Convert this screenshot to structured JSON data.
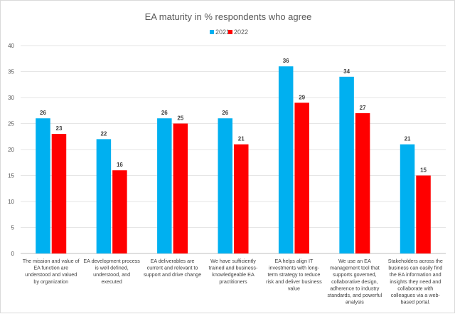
{
  "chart_data": {
    "type": "bar",
    "title": "EA maturity in % respondents who agree",
    "xlabel": "",
    "ylabel": "",
    "ylim": [
      0,
      40
    ],
    "yticks": [
      0,
      5,
      10,
      15,
      20,
      25,
      30,
      35,
      40
    ],
    "grid": true,
    "legend_position": "top-center",
    "categories": [
      [
        "The mission and value of",
        "EA function are",
        "understood and valued",
        "by organization"
      ],
      [
        "EA development process",
        "is well defined,",
        "understood, and",
        "executed"
      ],
      [
        "EA deliverables are",
        "current and relevant to",
        "support and drive change"
      ],
      [
        "We have sufficiently",
        "trained and business-",
        "knowledgeable EA",
        "practitioners"
      ],
      [
        "EA helps align IT",
        "investments with long-",
        "term strategy to reduce",
        "risk and deliver business",
        "value"
      ],
      [
        "We use an EA",
        "management tool that",
        "supports governed,",
        "collaborative design,",
        "adherence to industry",
        "standards, and powerful",
        "analysis"
      ],
      [
        "Stakeholders across the",
        "business can easily find",
        "the EA information and",
        "insights they need and",
        "collaborate with",
        "colleagues via a web-",
        "based portal."
      ]
    ],
    "series": [
      {
        "name": "2021",
        "color": "#00B0F0",
        "values": [
          26,
          22,
          26,
          26,
          36,
          34,
          21
        ]
      },
      {
        "name": "2022",
        "color": "#FF0000",
        "values": [
          23,
          16,
          25,
          21,
          29,
          27,
          15
        ]
      }
    ]
  }
}
